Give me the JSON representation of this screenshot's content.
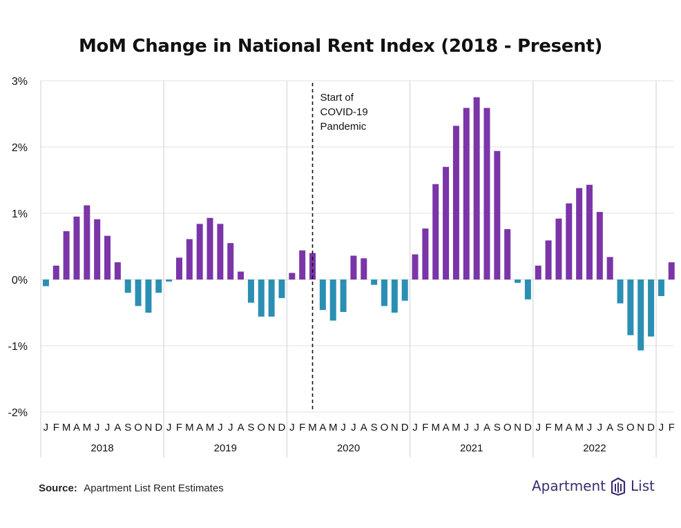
{
  "chart_data": {
    "type": "bar",
    "title": "MoM Change in National Rent Index (2018 - Present)",
    "ylim": [
      -2,
      3
    ],
    "y_ticks": [
      "3%",
      "2%",
      "1%",
      "0%",
      "-1%",
      "-2%"
    ],
    "y_tick_values": [
      3,
      2,
      1,
      0,
      -1,
      -2
    ],
    "month_labels": [
      "J",
      "F",
      "M",
      "A",
      "M",
      "J",
      "J",
      "A",
      "S",
      "O",
      "N",
      "D"
    ],
    "years": [
      "2018",
      "2019",
      "2020",
      "2021",
      "2022"
    ],
    "partial_year_months": [
      "J",
      "F"
    ],
    "grid": true,
    "positive_color": "#7b35a8",
    "negative_color": "#2b8fb4",
    "annotation": {
      "lines": [
        "Start of",
        "COVID-19",
        "Pandemic"
      ],
      "at_month_index": 26.5
    },
    "values": [
      -0.1,
      0.21,
      0.73,
      0.95,
      1.12,
      0.91,
      0.66,
      0.26,
      -0.2,
      -0.4,
      -0.5,
      -0.2,
      -0.03,
      0.33,
      0.61,
      0.84,
      0.93,
      0.84,
      0.55,
      0.12,
      -0.35,
      -0.56,
      -0.56,
      -0.28,
      0.1,
      0.44,
      0.4,
      -0.46,
      -0.62,
      -0.49,
      0.36,
      0.32,
      -0.08,
      -0.4,
      -0.5,
      -0.32,
      0.38,
      0.77,
      1.44,
      1.7,
      2.32,
      2.59,
      2.75,
      2.59,
      1.94,
      0.76,
      -0.05,
      -0.3,
      0.21,
      0.59,
      0.92,
      1.15,
      1.38,
      1.43,
      1.02,
      0.34,
      -0.36,
      -0.84,
      -1.07,
      -0.86,
      -0.25,
      0.26
    ]
  },
  "footer": {
    "source_label": "Source:",
    "source_text": "Apartment List Rent Estimates",
    "logo_word1": "Apartment",
    "logo_word2": "List",
    "logo_color": "#3a2d6e"
  }
}
